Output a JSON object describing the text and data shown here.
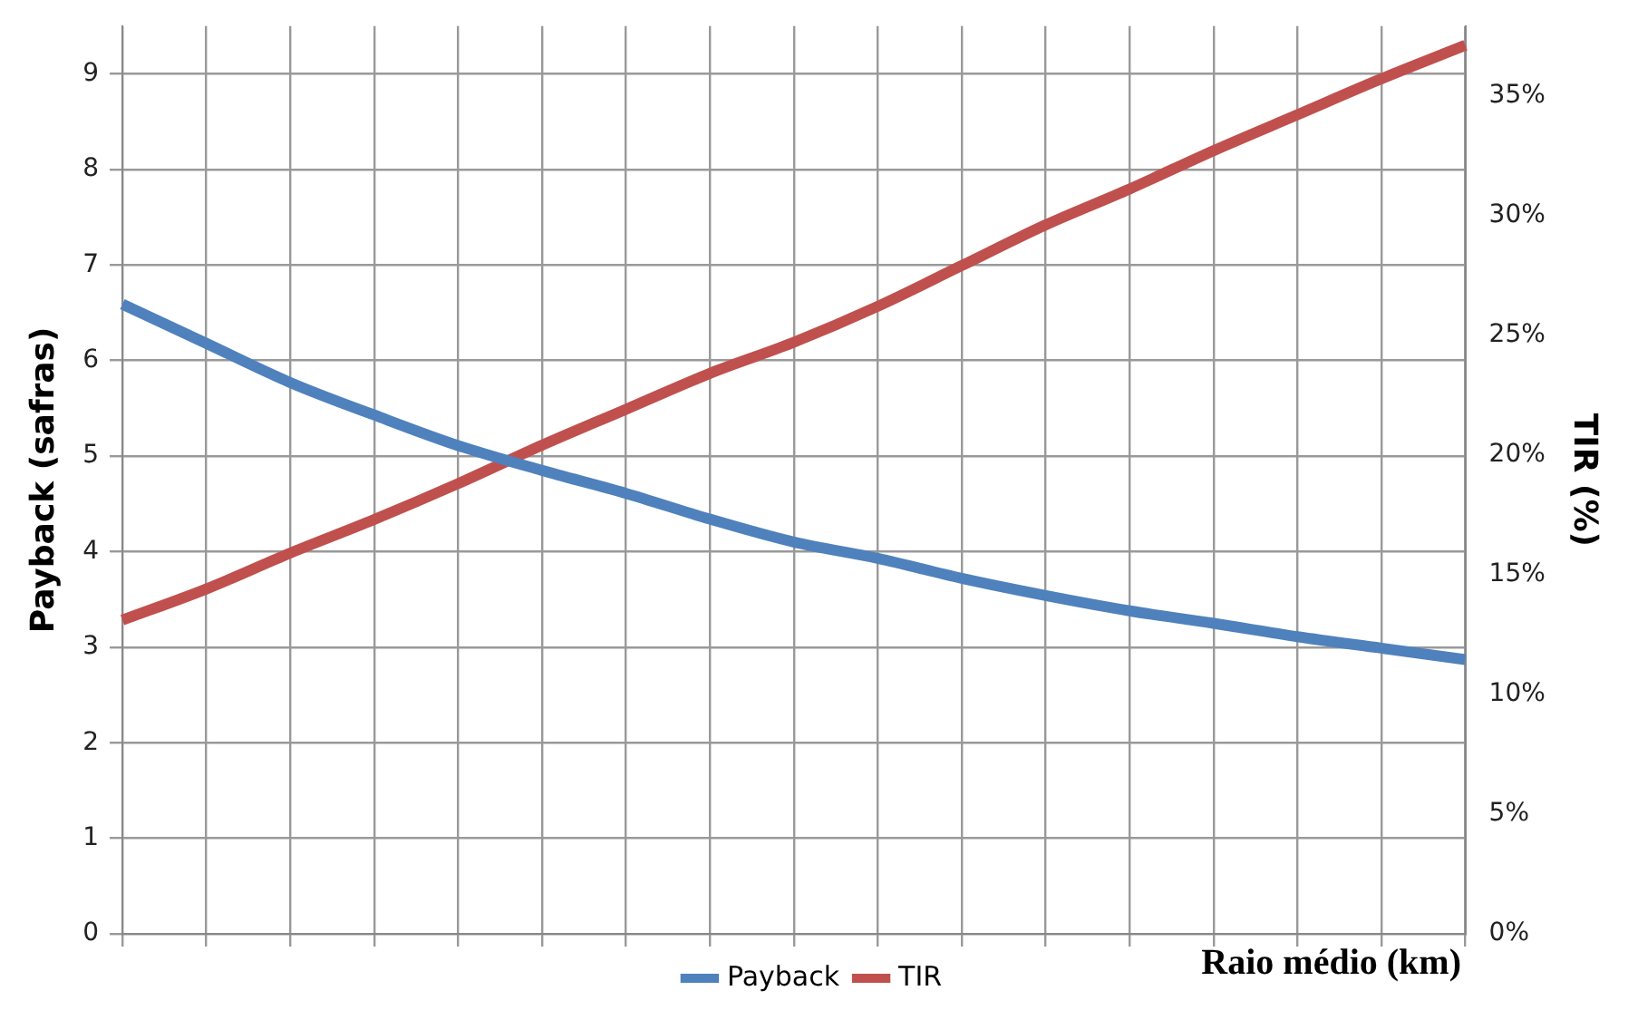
{
  "chart_data": {
    "type": "line",
    "xlabel": "Raio médio (km)",
    "ylabel": "Payback (safras)",
    "y2label": "TIR (%)",
    "categories": [
      null,
      null,
      null,
      null,
      null,
      null,
      null,
      null,
      null,
      null,
      null,
      null,
      null,
      null,
      null,
      null,
      null
    ],
    "series": [
      {
        "name": "Payback",
        "color": "#4f81bd",
        "values": [
          6.59,
          6.18,
          5.77,
          5.43,
          5.11,
          4.85,
          4.61,
          4.34,
          4.1,
          3.93,
          3.72,
          3.54,
          3.38,
          3.25,
          3.11,
          2.99,
          2.87
        ]
      },
      {
        "name": "TIR",
        "color": "#c0504d",
        "axis": "y2",
        "values": [
          13.1,
          14.4,
          15.9,
          17.3,
          18.8,
          20.4,
          21.9,
          23.4,
          24.7,
          26.2,
          27.9,
          29.6,
          31.1,
          32.7,
          34.2,
          35.7,
          37.1
        ]
      }
    ],
    "ylim": [
      0,
      9.5
    ],
    "yticks": [
      0,
      1,
      2,
      3,
      4,
      5,
      6,
      7,
      8,
      9
    ],
    "y2lim": [
      0,
      37.9
    ],
    "y2ticks": [
      {
        "value": 0,
        "label": "0%"
      },
      {
        "value": 5,
        "label": "5%"
      },
      {
        "value": 10,
        "label": "10%"
      },
      {
        "value": 15,
        "label": "15%"
      },
      {
        "value": 20,
        "label": "20%"
      },
      {
        "value": 25,
        "label": "25%"
      },
      {
        "value": 30,
        "label": "30%"
      },
      {
        "value": 35,
        "label": "35%"
      }
    ],
    "grid": true,
    "legend": "bottom",
    "tick_labels": "y",
    "marker": "none",
    "line_style": "solid"
  }
}
